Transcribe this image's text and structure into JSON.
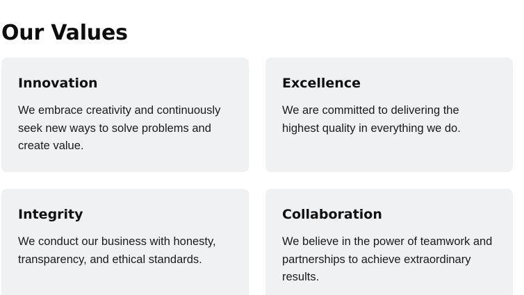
{
  "section": {
    "title": "Our Values"
  },
  "values": [
    {
      "title": "Innovation",
      "text": "We embrace creativity and continuously seek new ways to solve problems and create value."
    },
    {
      "title": "Excellence",
      "text": "We are committed to delivering the highest quality in everything we do."
    },
    {
      "title": "Integrity",
      "text": "We conduct our business with honesty, transparency, and ethical standards."
    },
    {
      "title": "Collaboration",
      "text": "We believe in the power of teamwork and partnerships to achieve extraordinary results."
    }
  ],
  "colors": {
    "card_background": "#f0f1f3",
    "heading": "#0d0d0d",
    "body_text": "#1a1a1a"
  }
}
